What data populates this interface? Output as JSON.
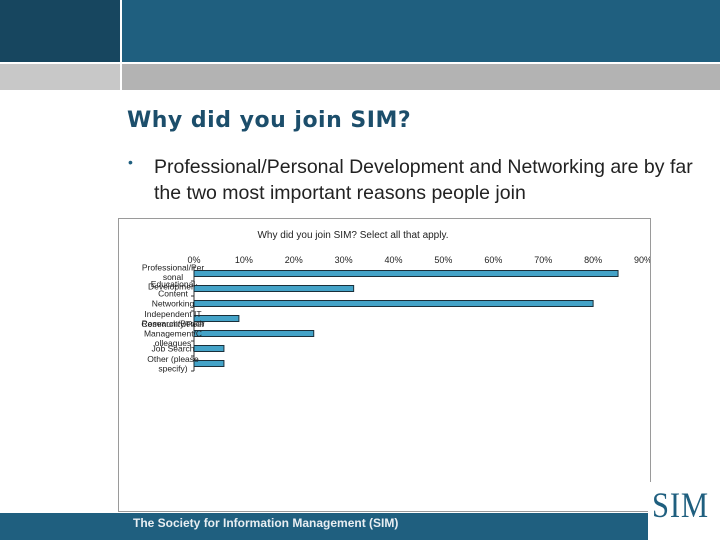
{
  "slide": {
    "title": "Why did you join SIM?",
    "bullet": "Professional/Personal Development and Networking are by far the two most important reasons people join",
    "footer": "The Society for Information Management (SIM)",
    "logo": "SIM"
  },
  "colors": {
    "header": "#1f5f7f",
    "title": "#1c4e6b",
    "bar_fill": "#44a3c8",
    "bar_stroke": "#1a2f3a"
  },
  "chart_data": {
    "type": "bar",
    "orientation": "horizontal",
    "title": "Why did you join SIM? Select all that apply.",
    "categories": [
      "Professional/Personal Development",
      "Educational Content",
      "Networking",
      "Independent IT Research/Benchmarking",
      "Community/Peer Management/Colleagues",
      "Job Search",
      "Other (please specify)"
    ],
    "category_label_lines": [
      [
        "Professional/Per",
        "sonal",
        "Development"
      ],
      [
        "Educational",
        "Content"
      ],
      [
        "Networking"
      ],
      [
        "Independent IT",
        "Research/Bench"
      ],
      [
        "Community/Peer",
        "Management/C",
        "olleagues"
      ],
      [
        "Job Search"
      ],
      [
        "Other (please",
        "specify)"
      ]
    ],
    "values": [
      85,
      32,
      80,
      9,
      24,
      6,
      6
    ],
    "xlim": [
      0,
      90
    ],
    "xticks": [
      "0%",
      "10%",
      "20%",
      "30%",
      "40%",
      "50%",
      "60%",
      "70%",
      "80%",
      "90%"
    ],
    "grid": false,
    "legend": "none"
  }
}
